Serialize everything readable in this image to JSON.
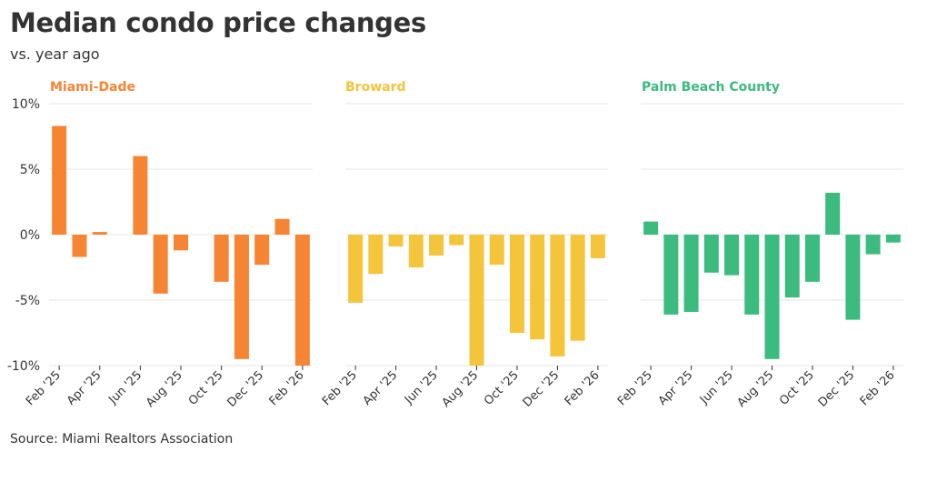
{
  "header": {
    "title": "Median condo price changes",
    "subtitle": "vs. year ago"
  },
  "footer": {
    "source": "Source: Miami Realtors Association"
  },
  "colors": {
    "Miami-Dade": "#f58433",
    "Broward": "#f4c43b",
    "Palm Beach County": "#3bbb7e",
    "gridline": "#e6e6e6",
    "text": "#333333"
  },
  "chart_data": {
    "type": "bar",
    "title": "Median condo price changes",
    "subtitle": "vs. year ago",
    "ylabel": "",
    "xlabel": "",
    "ylim": [
      -10,
      10
    ],
    "y_ticks": [
      10,
      5,
      0,
      -5,
      -10
    ],
    "y_tick_labels": [
      "10%",
      "5%",
      "0%",
      "-5%",
      "-10%"
    ],
    "categories": [
      "Feb '25",
      "Mar '25",
      "Apr '25",
      "May '25",
      "Jun '25",
      "Jul '25",
      "Aug '25",
      "Sep '25",
      "Oct '25",
      "Nov '25",
      "Dec '25",
      "Jan '26",
      "Feb '26"
    ],
    "x_tick_labels": [
      "Feb '25",
      "Apr '25",
      "Jun '25",
      "Aug '25",
      "Oct '25",
      "Dec '25",
      "Feb '26"
    ],
    "series": [
      {
        "name": "Miami-Dade",
        "values": [
          8.3,
          -1.7,
          0.2,
          null,
          6.0,
          -4.5,
          -1.2,
          null,
          -3.6,
          -9.5,
          -2.3,
          1.2,
          -10.0
        ]
      },
      {
        "name": "Broward",
        "values": [
          -5.2,
          -3.0,
          -0.9,
          -2.5,
          -1.6,
          -0.8,
          -10.0,
          -2.3,
          -7.5,
          -8.0,
          -9.3,
          -8.1,
          -1.8
        ]
      },
      {
        "name": "Palm Beach County",
        "values": [
          1.0,
          -6.1,
          -5.9,
          -2.9,
          -3.1,
          -6.1,
          -9.5,
          -4.8,
          -3.6,
          3.2,
          -6.5,
          -1.5,
          -0.6
        ]
      }
    ]
  }
}
